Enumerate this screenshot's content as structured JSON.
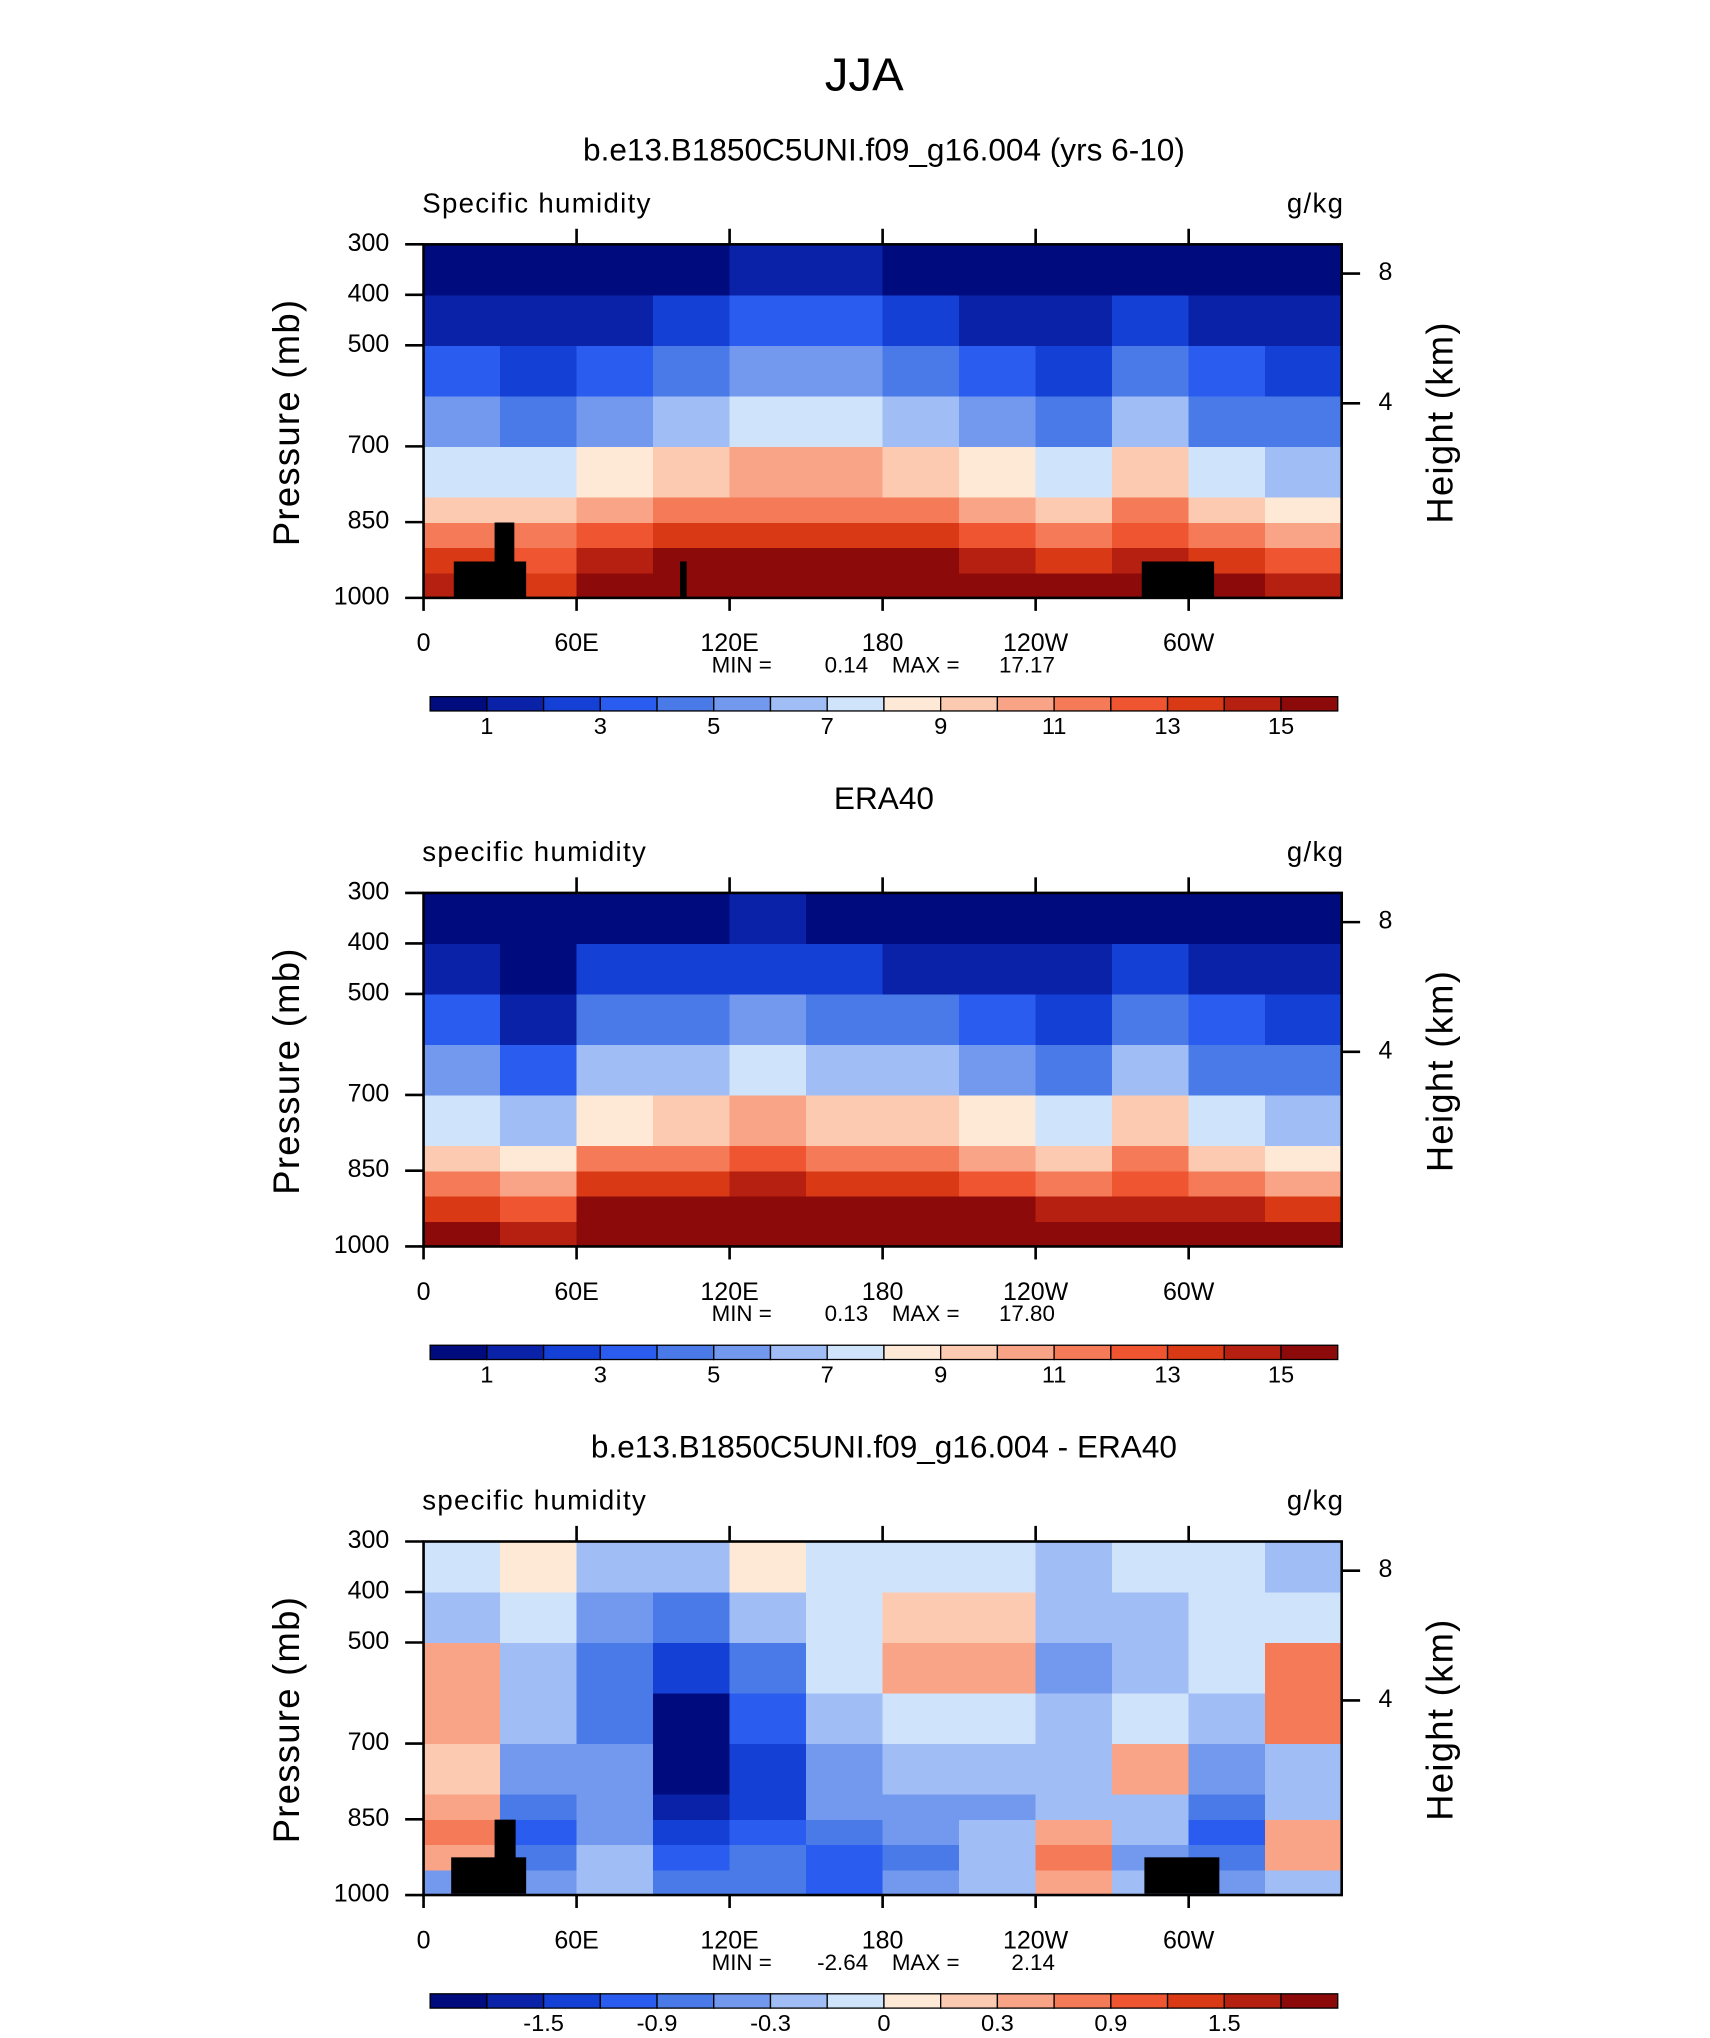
{
  "title": "JJA",
  "chart_data": [
    {
      "type": "contour",
      "title": "b.e13.B1850C5UNI.f09_g16.004 (yrs 6-10)",
      "subtitle": "Specific humidity",
      "units": "g/kg",
      "ylabel": "Pressure (mb)",
      "y2label": "Height (km)",
      "xlim": [
        0,
        360
      ],
      "xticks": [
        0,
        {
          "value": 60,
          "label": "60E"
        },
        {
          "value": 120,
          "label": "120E"
        },
        180,
        {
          "value": 240,
          "label": "120W"
        },
        {
          "value": 300,
          "label": "60W"
        }
      ],
      "ylim": [
        1000,
        300
      ],
      "yticks": [
        300,
        400,
        500,
        700,
        850,
        1000
      ],
      "y2lim": [
        -2,
        8.9
      ],
      "y2ticks": [
        4,
        8
      ],
      "lon_edges": [
        0,
        30,
        60,
        90,
        120,
        150,
        180,
        210,
        240,
        270,
        300,
        330,
        360
      ],
      "p_edges": [
        1000,
        950,
        900,
        850,
        800,
        700,
        600,
        500,
        400,
        300
      ],
      "values": [
        [
          14,
          13,
          16,
          16,
          16,
          17,
          16,
          16,
          15,
          15,
          15,
          14
        ],
        [
          13,
          12,
          14,
          15,
          15,
          15,
          15,
          14,
          13,
          14,
          13,
          12
        ],
        [
          11,
          11,
          12,
          13,
          13,
          13,
          13,
          12,
          11,
          12,
          11,
          10
        ],
        [
          9,
          9,
          10,
          11,
          11,
          11,
          11,
          10,
          9,
          11,
          9,
          8
        ],
        [
          7,
          7,
          8,
          9,
          10,
          10,
          9,
          8,
          7,
          9,
          7,
          6
        ],
        [
          5,
          4,
          5,
          6,
          7,
          7,
          6,
          5,
          4,
          6,
          4,
          4
        ],
        [
          3,
          2,
          3,
          4,
          5,
          5,
          4,
          3,
          2,
          4,
          3,
          2.5
        ],
        [
          1.5,
          1.2,
          1.8,
          2.5,
          3,
          3,
          2.5,
          1.8,
          1.3,
          2,
          1.5,
          1.2
        ],
        [
          0.5,
          0.4,
          0.6,
          0.9,
          1.2,
          1.1,
          0.8,
          0.5,
          0.4,
          0.6,
          0.5,
          0.4
        ]
      ],
      "contour_levels": [
        1,
        2,
        3,
        4,
        5,
        6,
        7,
        8,
        9,
        10,
        11,
        12,
        13,
        14,
        15
      ],
      "colorbar_ticks": [
        1,
        3,
        5,
        7,
        9,
        11,
        13,
        15
      ],
      "colors": [
        "#000c7d",
        "#0a22a8",
        "#1540d5",
        "#2a5cf0",
        "#4a7ae8",
        "#7399ee",
        "#a0bdf5",
        "#cfe3fb",
        "#fde9d6",
        "#fccab0",
        "#f9a486",
        "#f57a58",
        "#ee5530",
        "#d93a15",
        "#b52010",
        "#8c0a0a"
      ],
      "min_label": "MIN =",
      "min": 0.14,
      "max_label": "MAX =",
      "max": 17.17
    },
    {
      "type": "contour",
      "title": "ERA40",
      "subtitle": "specific humidity",
      "units": "g/kg",
      "ylabel": "Pressure (mb)",
      "y2label": "Height (km)",
      "xlim": [
        0,
        360
      ],
      "xticks": [
        0,
        {
          "value": 60,
          "label": "60E"
        },
        {
          "value": 120,
          "label": "120E"
        },
        180,
        {
          "value": 240,
          "label": "120W"
        },
        {
          "value": 300,
          "label": "60W"
        }
      ],
      "ylim": [
        1000,
        300
      ],
      "yticks": [
        300,
        400,
        500,
        700,
        850,
        1000
      ],
      "y2lim": [
        -2,
        8.9
      ],
      "y2ticks": [
        4,
        8
      ],
      "lon_edges": [
        0,
        30,
        60,
        90,
        120,
        150,
        180,
        210,
        240,
        270,
        300,
        330,
        360
      ],
      "p_edges": [
        1000,
        950,
        900,
        850,
        800,
        700,
        600,
        500,
        400,
        300
      ],
      "values": [
        [
          15,
          14,
          17,
          17,
          17,
          17,
          17,
          17,
          16,
          16,
          16,
          15
        ],
        [
          13,
          12,
          15,
          16,
          16,
          16,
          15,
          15,
          14,
          14,
          14,
          13
        ],
        [
          11,
          10,
          13,
          13,
          14,
          13,
          13,
          12,
          11,
          12,
          11,
          10
        ],
        [
          9,
          8,
          11,
          11,
          12,
          11,
          11,
          10,
          9,
          11,
          9,
          8
        ],
        [
          7,
          6,
          8,
          9,
          10,
          9,
          9,
          8,
          7,
          9,
          7,
          6
        ],
        [
          5,
          3.5,
          6,
          6.5,
          7,
          6.5,
          6,
          5,
          4,
          6,
          4.5,
          4
        ],
        [
          3,
          1.8,
          4,
          4.5,
          5,
          4.5,
          4,
          3,
          2.3,
          4,
          3,
          2.5
        ],
        [
          1.5,
          0.8,
          2,
          2.5,
          2.8,
          2.5,
          1.8,
          1.3,
          1,
          2,
          1.5,
          1
        ],
        [
          0.4,
          0.3,
          0.7,
          0.9,
          1,
          0.8,
          0.5,
          0.3,
          0.3,
          0.6,
          0.4,
          0.3
        ]
      ],
      "contour_levels": [
        1,
        2,
        3,
        4,
        5,
        6,
        7,
        8,
        9,
        10,
        11,
        12,
        13,
        14,
        15
      ],
      "colorbar_ticks": [
        1,
        3,
        5,
        7,
        9,
        11,
        13,
        15
      ],
      "colors": [
        "#000c7d",
        "#0a22a8",
        "#1540d5",
        "#2a5cf0",
        "#4a7ae8",
        "#7399ee",
        "#a0bdf5",
        "#cfe3fb",
        "#fde9d6",
        "#fccab0",
        "#f9a486",
        "#f57a58",
        "#ee5530",
        "#d93a15",
        "#b52010",
        "#8c0a0a"
      ],
      "min_label": "MIN =",
      "min": 0.13,
      "max_label": "MAX =",
      "max": {
        "value": 17.8,
        "label": "17.80"
      }
    },
    {
      "type": "contour",
      "title": "b.e13.B1850C5UNI.f09_g16.004 - ERA40",
      "subtitle": "specific humidity",
      "units": "g/kg",
      "ylabel": "Pressure (mb)",
      "y2label": "Height (km)",
      "xlim": [
        0,
        360
      ],
      "xticks": [
        0,
        {
          "value": 60,
          "label": "60E"
        },
        {
          "value": 120,
          "label": "120E"
        },
        180,
        {
          "value": 240,
          "label": "120W"
        },
        {
          "value": 300,
          "label": "60W"
        }
      ],
      "ylim": [
        1000,
        300
      ],
      "yticks": [
        300,
        400,
        500,
        700,
        850,
        1000
      ],
      "y2lim": [
        -2,
        8.9
      ],
      "y2ticks": [
        4,
        8
      ],
      "lon_edges": [
        0,
        30,
        60,
        90,
        120,
        150,
        180,
        210,
        240,
        270,
        300,
        330,
        360
      ],
      "p_edges": [
        1000,
        950,
        900,
        850,
        800,
        700,
        600,
        500,
        400,
        300
      ],
      "values": [
        [
          -0.6,
          -0.5,
          -0.3,
          -0.9,
          -0.9,
          -1.2,
          -0.6,
          -0.3,
          0.3,
          -0.3,
          -0.6,
          -0.3
        ],
        [
          0.3,
          -0.9,
          -0.3,
          -1.2,
          -0.9,
          -1.2,
          -0.9,
          -0.3,
          0.6,
          -0.6,
          -0.9,
          0.3
        ],
        [
          0.6,
          -1.2,
          -0.6,
          -1.5,
          -1.2,
          -0.9,
          -0.6,
          -0.3,
          0.3,
          -0.3,
          -1.2,
          0.3
        ],
        [
          0.3,
          -0.9,
          -0.6,
          -1.8,
          -1.5,
          -0.6,
          -0.6,
          -0.6,
          -0.3,
          -0.3,
          -0.9,
          -0.3
        ],
        [
          0.1,
          -0.6,
          -0.6,
          -2.1,
          -1.5,
          -0.6,
          -0.3,
          -0.3,
          -0.3,
          0.3,
          -0.6,
          -0.3
        ],
        [
          0.3,
          -0.3,
          -0.9,
          -2.1,
          -1.2,
          -0.3,
          -0.1,
          -0.1,
          -0.3,
          -0.1,
          -0.3,
          0.6
        ],
        [
          0.3,
          -0.3,
          -0.9,
          -1.5,
          -0.9,
          -0.1,
          0.3,
          0.3,
          -0.6,
          -0.3,
          -0.1,
          0.6
        ],
        [
          -0.3,
          -0.1,
          -0.6,
          -0.9,
          -0.3,
          -0.1,
          0.1,
          0.1,
          -0.3,
          -0.3,
          -0.1,
          -0.1
        ],
        [
          -0.1,
          0.05,
          -0.3,
          -0.3,
          0.05,
          -0.1,
          -0.1,
          -0.1,
          -0.3,
          -0.1,
          -0.1,
          -0.3
        ]
      ],
      "contour_levels": [
        -1.8,
        -1.5,
        -1.2,
        -0.9,
        -0.6,
        -0.3,
        -0.1,
        0,
        0.1,
        0.3,
        0.6,
        0.9,
        1.2,
        1.5,
        1.8
      ],
      "colorbar_ticks": [
        -1.5,
        -0.9,
        -0.3,
        0,
        0.3,
        0.9,
        1.5
      ],
      "colors": [
        "#000c7d",
        "#0a22a8",
        "#1540d5",
        "#2a5cf0",
        "#4a7ae8",
        "#7399ee",
        "#a0bdf5",
        "#cfe3fb",
        "#fde9d6",
        "#fccab0",
        "#f9a486",
        "#f57a58",
        "#ee5530",
        "#d93a15",
        "#b52010",
        "#8c0a0a"
      ],
      "min_label": "MIN =",
      "min": -2.64,
      "max_label": "MAX =",
      "max": 2.14
    }
  ]
}
